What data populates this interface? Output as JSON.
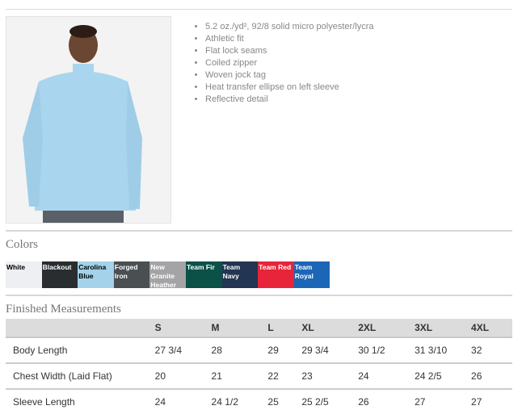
{
  "features": [
    "5.2 oz./yd², 92/8 solid micro polyester/lycra",
    "Athletic fit",
    "Flat lock seams",
    "Coiled zipper",
    "Woven jock tag",
    "Heat transfer ellipse on left sleeve",
    "Reflective detail"
  ],
  "colors_title": "Colors",
  "colors": [
    {
      "name": "White",
      "hex": "#eeeff3",
      "text": "#000"
    },
    {
      "name": "Blackout",
      "hex": "#2a2d30",
      "text": "#fff"
    },
    {
      "name": "Carolina Blue",
      "hex": "#a3d2ea",
      "text": "#000"
    },
    {
      "name": "Forged Iron",
      "hex": "#4a4f52",
      "text": "#fff"
    },
    {
      "name": "New Granite Heather",
      "hex": "#a4a4a6",
      "text": "#fff"
    },
    {
      "name": "Team Fir",
      "hex": "#0b5147",
      "text": "#fff"
    },
    {
      "name": "Team Navy",
      "hex": "#223552",
      "text": "#fff"
    },
    {
      "name": "Team Red",
      "hex": "#e8243a",
      "text": "#fff"
    },
    {
      "name": "Team Royal",
      "hex": "#1c66b8",
      "text": "#fff"
    }
  ],
  "measurements_title": "Finished Measurements",
  "sizes": [
    "S",
    "M",
    "L",
    "XL",
    "2XL",
    "3XL",
    "4XL"
  ],
  "rows": [
    {
      "label": "Body Length",
      "values": [
        "27 3/4",
        "28",
        "29",
        "29 3/4",
        "30 1/2",
        "31 3/10",
        "32"
      ]
    },
    {
      "label": "Chest Width (Laid Flat)",
      "values": [
        "20",
        "21",
        "22",
        "23",
        "24",
        "24 2/5",
        "26"
      ]
    },
    {
      "label": "Sleeve Length",
      "values": [
        "24",
        "24 1/2",
        "25",
        "25 2/5",
        "26",
        "27",
        "27"
      ]
    }
  ]
}
